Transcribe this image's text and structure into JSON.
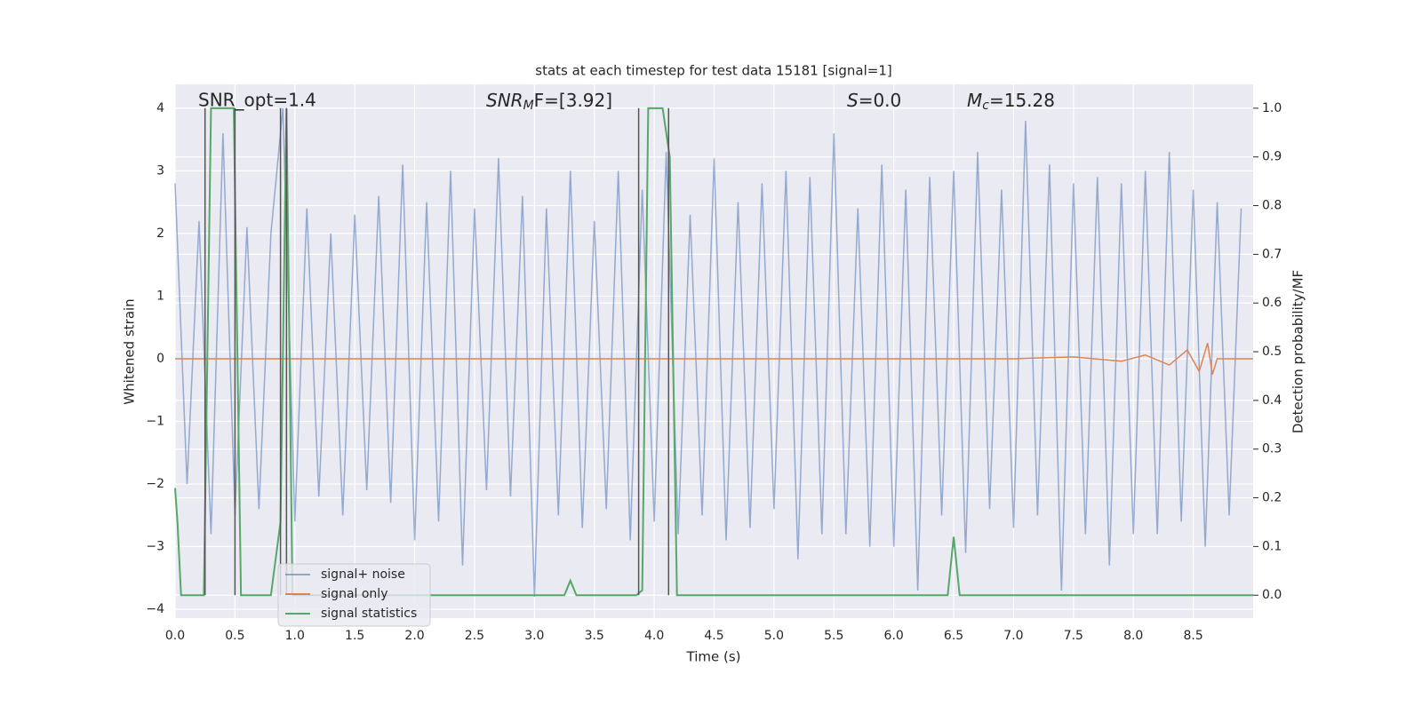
{
  "chart_data": {
    "type": "line",
    "title": "stats at each timestep for test data 15181 [signal=1]",
    "xlabel": "Time (s)",
    "ylabel": "Whitened strain",
    "y2label": "Detection probability/MF",
    "xlim": [
      0,
      9
    ],
    "ylim": [
      -4.14,
      4.38
    ],
    "y2lim": [
      -0.047,
      1.049
    ],
    "xticks": [
      {
        "value": 0,
        "label": "0.0"
      },
      0.5,
      {
        "value": 1,
        "label": "1.0"
      },
      1.5,
      {
        "value": 2,
        "label": "2.0"
      },
      2.5,
      {
        "value": 3,
        "label": "3.0"
      },
      3.5,
      {
        "value": 4,
        "label": "4.0"
      },
      4.5,
      {
        "value": 5,
        "label": "5.0"
      },
      5.5,
      {
        "value": 6,
        "label": "6.0"
      },
      6.5,
      {
        "value": 7,
        "label": "7.0"
      },
      7.5,
      {
        "value": 8,
        "label": "8.0"
      },
      8.5
    ],
    "yticks": [
      {
        "value": -4,
        "label": "−4"
      },
      {
        "value": -3,
        "label": "−3"
      },
      {
        "value": -2,
        "label": "−2"
      },
      {
        "value": -1,
        "label": "−1"
      },
      0,
      1,
      2,
      3,
      4
    ],
    "y2ticks": [
      {
        "value": 0,
        "label": "0.0"
      },
      0.1,
      0.2,
      0.3,
      0.4,
      0.5,
      0.6,
      0.7,
      0.8,
      0.9,
      {
        "value": 1,
        "label": "1.0"
      }
    ],
    "grid": true,
    "legend": "lower left",
    "series": [
      {
        "name": "signal+ noise",
        "color": "#4c72b0",
        "x": [
          0,
          0.1,
          0.2,
          0.3,
          0.4,
          0.5,
          0.6,
          0.7,
          0.8,
          0.9,
          1,
          1.1,
          1.2,
          1.3,
          1.4,
          1.5,
          1.6,
          1.7,
          1.8,
          1.9,
          2,
          2.1,
          2.2,
          2.3,
          2.4,
          2.5,
          2.6,
          2.7,
          2.8,
          2.9,
          3,
          3.1,
          3.2,
          3.3,
          3.4,
          3.5,
          3.6,
          3.7,
          3.8,
          3.9,
          4,
          4.1,
          4.2,
          4.3,
          4.4,
          4.5,
          4.6,
          4.7,
          4.8,
          4.9,
          5,
          5.1,
          5.2,
          5.3,
          5.4,
          5.5,
          5.6,
          5.7,
          5.8,
          5.9,
          6,
          6.1,
          6.2,
          6.3,
          6.4,
          6.5,
          6.6,
          6.7,
          6.8,
          6.9,
          7,
          7.1,
          7.2,
          7.3,
          7.4,
          7.5,
          7.6,
          7.7,
          7.8,
          7.9,
          8,
          8.1,
          8.2,
          8.3,
          8.4,
          8.5,
          8.6,
          8.7,
          8.8,
          8.9
        ],
        "values": [
          2.8,
          -2.0,
          2.2,
          -2.8,
          3.6,
          -2.5,
          2.1,
          -2.4,
          2.0,
          4.0,
          -2.6,
          2.4,
          -2.2,
          2.0,
          -2.5,
          2.3,
          -2.1,
          2.6,
          -2.3,
          3.1,
          -2.9,
          2.5,
          -2.6,
          3.0,
          -3.3,
          2.4,
          -2.1,
          3.2,
          -2.2,
          2.6,
          -3.8,
          2.4,
          -2.5,
          3.0,
          -2.7,
          2.2,
          -2.4,
          3.0,
          -2.9,
          2.7,
          -2.6,
          3.3,
          -2.8,
          2.3,
          -2.5,
          3.2,
          -2.9,
          2.5,
          -2.7,
          2.8,
          -2.4,
          3.0,
          -3.2,
          2.9,
          -2.8,
          3.6,
          -2.8,
          2.4,
          -3.0,
          3.1,
          -3.0,
          2.7,
          -3.7,
          2.9,
          -2.5,
          3.0,
          -3.1,
          3.3,
          -2.4,
          2.7,
          -2.7,
          3.8,
          -2.5,
          3.1,
          -3.7,
          2.8,
          -2.8,
          2.9,
          -3.3,
          2.8,
          -2.8,
          3.0,
          -2.8,
          3.3,
          -2.6,
          2.7,
          -3.0,
          2.5,
          -2.5,
          2.4
        ]
      },
      {
        "name": "signal only",
        "color": "#dd8452",
        "x": [
          0,
          7.0,
          7.5,
          7.9,
          8.1,
          8.3,
          8.45,
          8.55,
          8.62,
          8.66,
          8.7,
          9.0
        ],
        "values": [
          0,
          0,
          0.03,
          -0.04,
          0.06,
          -0.1,
          0.14,
          -0.2,
          0.25,
          -0.25,
          0,
          0
        ]
      },
      {
        "name": "signal statistics",
        "color": "#55a868",
        "axis": "y2",
        "x": [
          0,
          0.02,
          0.05,
          0.24,
          0.3,
          0.49,
          0.55,
          0.8,
          0.88,
          0.93,
          0.98,
          3.25,
          3.3,
          3.35,
          3.85,
          3.9,
          3.95,
          4.07,
          4.13,
          4.19,
          6.45,
          6.5,
          6.55,
          9.0
        ],
        "values": [
          0.22,
          0.15,
          0,
          0,
          1,
          1,
          0,
          0,
          0.15,
          1,
          0,
          0,
          0.03,
          0,
          0,
          0.01,
          1,
          1,
          0.9,
          0,
          0,
          0.12,
          0,
          0
        ]
      }
    ],
    "vlines": [
      0.25,
      0.5,
      0.88,
      0.93,
      3.87,
      4.12
    ],
    "vline_color": "#555555",
    "annotations": [
      {
        "text": "SNR_opt=1.4"
      },
      {
        "base": "SNR",
        "sub": "M",
        "tail": "F=[3.92]"
      },
      {
        "base": "S",
        "tail": "=0.0"
      },
      {
        "base": "M",
        "sub": "c",
        "tail": "=15.28"
      }
    ]
  }
}
